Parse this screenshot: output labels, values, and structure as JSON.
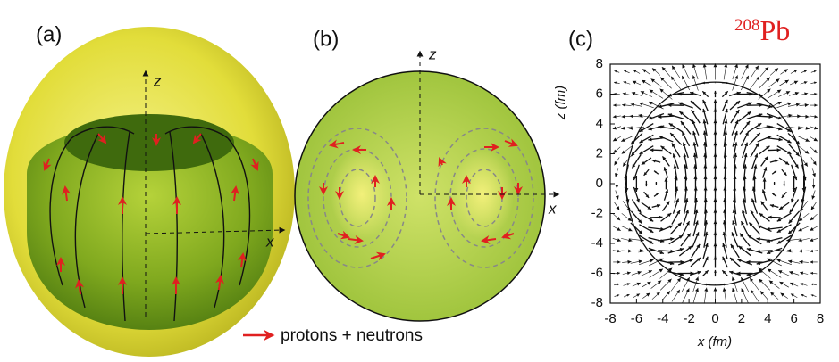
{
  "panels": [
    {
      "label": "(a)",
      "axis_labels": [
        "z",
        "x"
      ]
    },
    {
      "label": "(b)",
      "axis_labels": [
        "z",
        "x"
      ]
    },
    {
      "label": "(c)",
      "xlabel": "x (fm)",
      "ylabel": "z (fm)",
      "xlim": [
        -8,
        8
      ],
      "ylim": [
        -8,
        8
      ],
      "xticks": [
        -8,
        -6,
        -4,
        -2,
        0,
        2,
        4,
        6,
        8
      ],
      "yticks": [
        -8,
        -6,
        -4,
        -2,
        0,
        2,
        4,
        6,
        8
      ]
    }
  ],
  "legend": "protons + neutrons",
  "nucleus": {
    "mass_number": "208",
    "symbol": "Pb"
  }
}
